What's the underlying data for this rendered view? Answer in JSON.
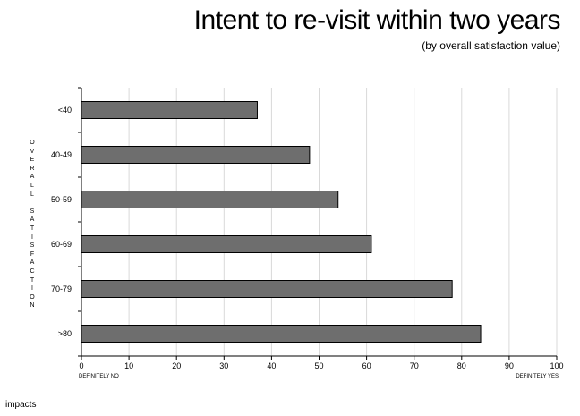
{
  "title": "Intent to re-visit within two years",
  "subtitle": "(by overall satisfaction value)",
  "logo_text": "impacts",
  "chart_data": {
    "type": "bar",
    "orientation": "horizontal",
    "title": "Intent to re-visit within two years",
    "subtitle": "(by overall satisfaction value)",
    "ylabel": "OVERALL SATISFACTION",
    "xlabel": "",
    "categories": [
      "<40",
      "40-49",
      "50-59",
      "60-69",
      "70-79",
      ">80"
    ],
    "values": [
      37,
      48,
      54,
      61,
      78,
      84
    ],
    "xlim": [
      0,
      100
    ],
    "xticks": [
      "0",
      "10",
      "20",
      "30",
      "40",
      "50",
      "60",
      "70",
      "80",
      "90",
      "100"
    ],
    "x_end_labels": {
      "left": "DEFINITELY NO",
      "right": "DEFINITELY YES"
    },
    "grid": true,
    "bar_color": "#6e6e6e",
    "bar_edge_color": "#000000",
    "grid_color": "#d9d9d9"
  }
}
